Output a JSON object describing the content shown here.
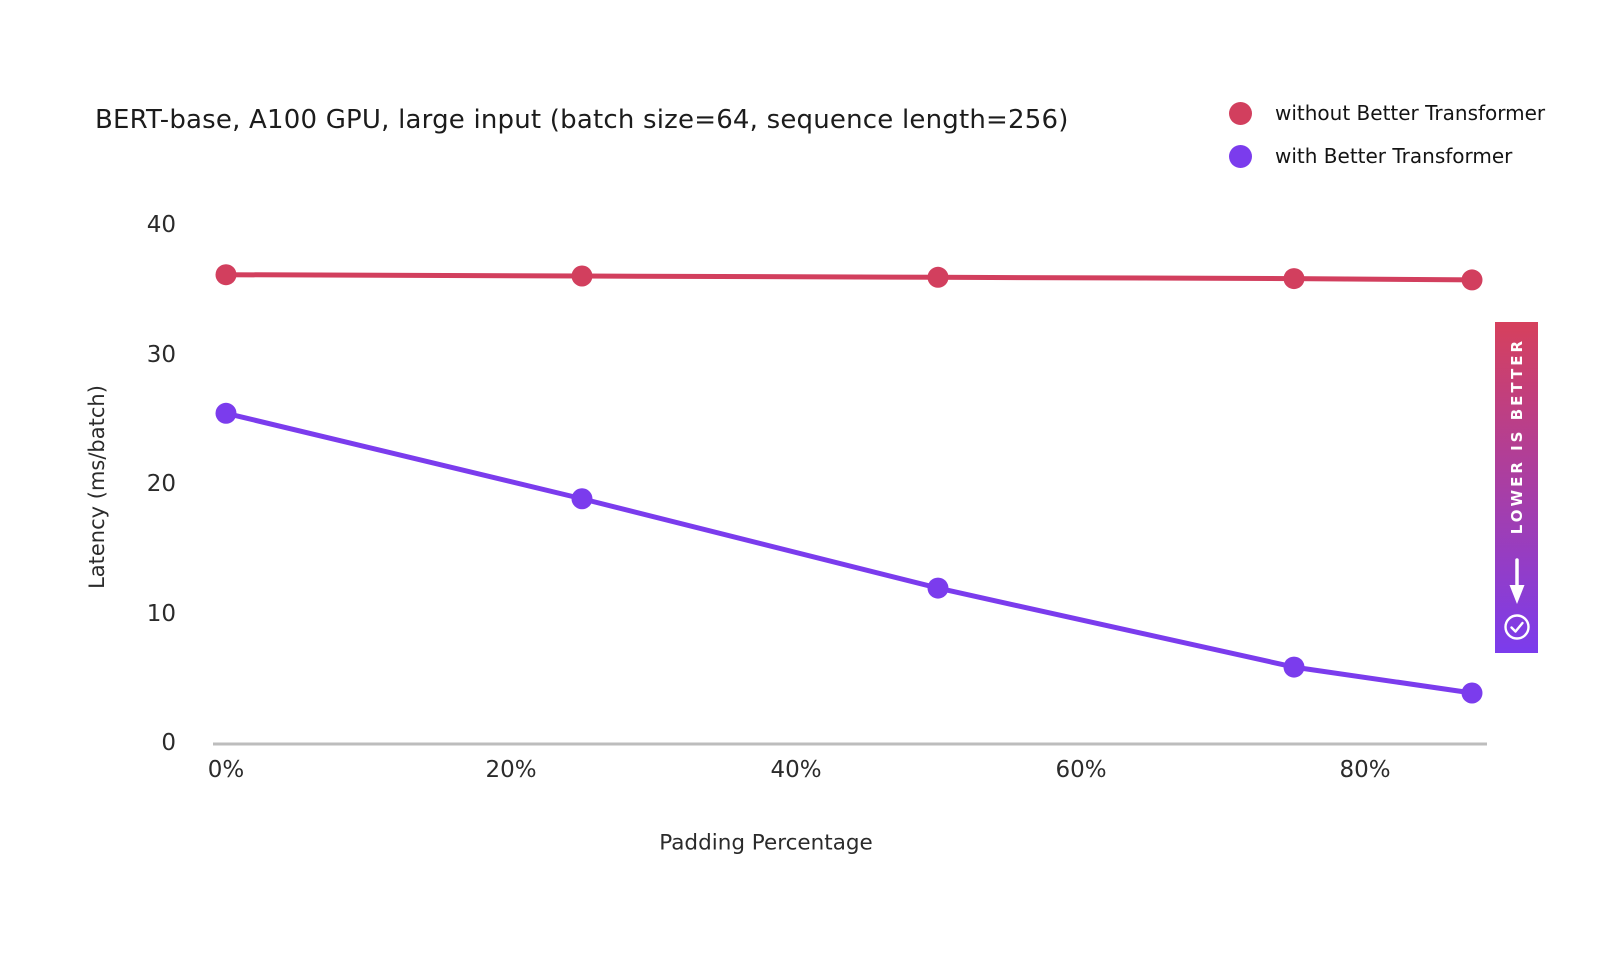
{
  "chart_data": {
    "type": "line",
    "title": "BERT-base, A100 GPU, large input (batch size=64, sequence length=256)",
    "xlabel": "Padding Percentage",
    "ylabel": "Latency (ms/batch)",
    "x": [
      0,
      25,
      50,
      75,
      87.5
    ],
    "x_unit": "%",
    "series": [
      {
        "name": "without Better Transformer",
        "color": "#d23f5e",
        "values": [
          36.2,
          36.1,
          36.0,
          35.9,
          35.8
        ]
      },
      {
        "name": "with Better Transformer",
        "color": "#7b3ced",
        "values": [
          25.5,
          18.9,
          12.0,
          5.9,
          3.9
        ]
      }
    ],
    "x_ticks": [
      "0%",
      "20%",
      "40%",
      "60%",
      "80%"
    ],
    "x_tick_values": [
      0,
      20,
      40,
      60,
      80
    ],
    "y_ticks": [
      "0",
      "10",
      "20",
      "30",
      "40"
    ],
    "y_tick_values": [
      0,
      10,
      20,
      30,
      40
    ],
    "ylim": [
      0,
      40
    ],
    "xlim": [
      0,
      90
    ],
    "grid": false,
    "legend_position": "top-right",
    "marker": "circle"
  },
  "colors": {
    "red_series": "#d23f5e",
    "purple_series": "#7b3ced",
    "axis_line": "#bdbdbd",
    "banner_gradient_top": "#d6405c",
    "banner_gradient_bottom": "#7b3ced",
    "banner_text": "#ffffff"
  },
  "banner": {
    "label": "LOWER IS BETTER",
    "icons": [
      "arrow-down-icon",
      "check-circle-icon"
    ]
  }
}
